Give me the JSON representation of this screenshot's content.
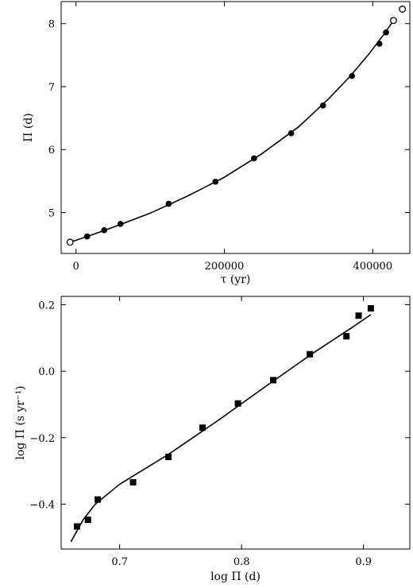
{
  "chart_data": [
    {
      "type": "scatter",
      "title": "",
      "xlabel": "τ (yr)",
      "ylabel": "Π (d)",
      "xlim": [
        -20000,
        450000
      ],
      "ylim": [
        4.35,
        8.35
      ],
      "xticks": [
        0,
        200000,
        400000
      ],
      "xtick_labels": [
        "0",
        "200000",
        "400000"
      ],
      "yticks": [
        5,
        6,
        7,
        8
      ],
      "ytick_labels": [
        "5",
        "6",
        "7",
        "8"
      ],
      "grid": false,
      "legend": "none",
      "series": [
        {
          "marker": "filled-circle",
          "x": [
            15000,
            38000,
            60000,
            125000,
            188000,
            240000,
            290000,
            333000,
            372000,
            409000,
            418000
          ],
          "y": [
            4.62,
            4.72,
            4.82,
            5.14,
            5.49,
            5.86,
            6.26,
            6.7,
            7.17,
            7.68,
            7.86
          ]
        },
        {
          "marker": "open-circle",
          "x": [
            -8000,
            428000,
            440000
          ],
          "y": [
            4.53,
            8.05,
            8.23
          ]
        },
        {
          "marker": "line",
          "x": [
            -8000,
            0,
            30000,
            60000,
            100000,
            150000,
            200000,
            250000,
            300000,
            340000,
            370000,
            395000,
            415000,
            428000
          ],
          "y": [
            4.53,
            4.56,
            4.68,
            4.81,
            4.99,
            5.26,
            5.56,
            5.93,
            6.36,
            6.8,
            7.17,
            7.52,
            7.83,
            8.05
          ]
        }
      ]
    },
    {
      "type": "scatter",
      "title": "",
      "xlabel": "log Π (d)",
      "ylabel": "log Π̇ (s yr⁻¹)",
      "xlim": [
        0.652,
        0.938
      ],
      "ylim": [
        -0.535,
        0.225
      ],
      "xticks": [
        0.7,
        0.8,
        0.9
      ],
      "xtick_labels": [
        "0.7",
        "0.8",
        "0.9"
      ],
      "yticks": [
        0.2,
        0.0,
        -0.2,
        -0.4
      ],
      "ytick_labels": [
        "0.2",
        "0.0",
        "−0.2",
        "−0.4"
      ],
      "grid": false,
      "legend": "none",
      "series": [
        {
          "marker": "filled-square",
          "x": [
            0.665,
            0.674,
            0.682,
            0.711,
            0.74,
            0.768,
            0.797,
            0.826,
            0.856,
            0.886,
            0.896,
            0.906
          ],
          "y": [
            -0.467,
            -0.447,
            -0.386,
            -0.334,
            -0.258,
            -0.17,
            -0.097,
            -0.027,
            0.051,
            0.105,
            0.167,
            0.189
          ]
        },
        {
          "marker": "line",
          "x": [
            0.66,
            0.67,
            0.68,
            0.7,
            0.74,
            0.78,
            0.82,
            0.86,
            0.89,
            0.906
          ],
          "y": [
            -0.513,
            -0.447,
            -0.4,
            -0.34,
            -0.25,
            -0.15,
            -0.045,
            0.058,
            0.13,
            0.17
          ]
        }
      ]
    }
  ]
}
